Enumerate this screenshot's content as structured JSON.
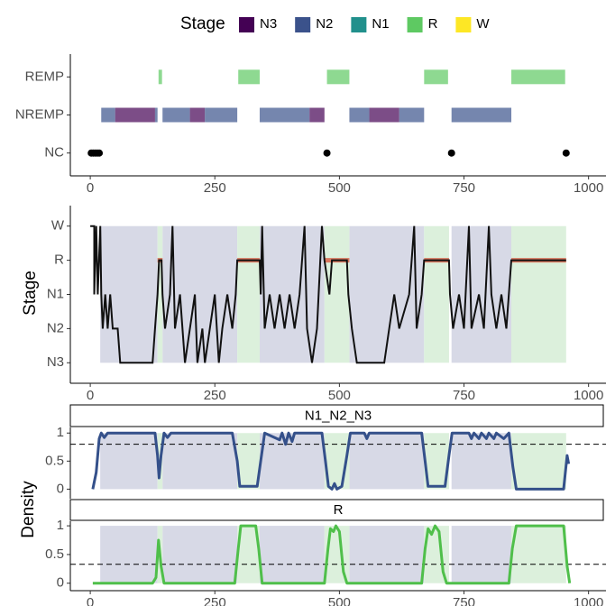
{
  "chart_data": [
    {
      "type": "timeline",
      "legend_title": "Stage",
      "stages": [
        {
          "name": "N3",
          "color": "#440154"
        },
        {
          "name": "N2",
          "color": "#3b528b"
        },
        {
          "name": "N1",
          "color": "#21908c"
        },
        {
          "name": "R",
          "color": "#5ec962"
        },
        {
          "name": "W",
          "color": "#fde725"
        }
      ],
      "categories": [
        "NC",
        "NREMP",
        "REMP"
      ],
      "segments": [
        {
          "row": "REMP",
          "start": 137,
          "end": 144,
          "stage": "R"
        },
        {
          "row": "REMP",
          "start": 297,
          "end": 340,
          "stage": "R"
        },
        {
          "row": "REMP",
          "start": 475,
          "end": 520,
          "stage": "R"
        },
        {
          "row": "REMP",
          "start": 670,
          "end": 718,
          "stage": "R"
        },
        {
          "row": "REMP",
          "start": 845,
          "end": 953,
          "stage": "R"
        },
        {
          "row": "NREMP",
          "start": 22,
          "end": 50,
          "stage": "N2"
        },
        {
          "row": "NREMP",
          "start": 50,
          "end": 130,
          "stage": "N3"
        },
        {
          "row": "NREMP",
          "start": 130,
          "end": 135,
          "stage": "N2"
        },
        {
          "row": "NREMP",
          "start": 145,
          "end": 200,
          "stage": "N2"
        },
        {
          "row": "NREMP",
          "start": 200,
          "end": 230,
          "stage": "N3"
        },
        {
          "row": "NREMP",
          "start": 230,
          "end": 295,
          "stage": "N2"
        },
        {
          "row": "NREMP",
          "start": 340,
          "end": 440,
          "stage": "N2"
        },
        {
          "row": "NREMP",
          "start": 440,
          "end": 470,
          "stage": "N3"
        },
        {
          "row": "NREMP",
          "start": 520,
          "end": 560,
          "stage": "N2"
        },
        {
          "row": "NREMP",
          "start": 560,
          "end": 620,
          "stage": "N3"
        },
        {
          "row": "NREMP",
          "start": 620,
          "end": 670,
          "stage": "N2"
        },
        {
          "row": "NREMP",
          "start": 725,
          "end": 845,
          "stage": "N2"
        }
      ],
      "points": [
        {
          "row": "NC",
          "x": 2
        },
        {
          "row": "NC",
          "x": 6
        },
        {
          "row": "NC",
          "x": 10
        },
        {
          "row": "NC",
          "x": 14
        },
        {
          "row": "NC",
          "x": 18
        },
        {
          "row": "NC",
          "x": 475
        },
        {
          "row": "NC",
          "x": 725
        },
        {
          "row": "NC",
          "x": 955
        }
      ],
      "xlim": [
        -40,
        1035
      ],
      "xticks": [
        0,
        250,
        500,
        750,
        1000
      ]
    },
    {
      "type": "hypnogram",
      "ylabel": "Stage",
      "categories": [
        "N3",
        "N2",
        "N1",
        "R",
        "W"
      ],
      "x": [
        0,
        8,
        8,
        12,
        15,
        20,
        22,
        25,
        30,
        35,
        40,
        45,
        55,
        60,
        125,
        130,
        135,
        138,
        143,
        145,
        150,
        160,
        165,
        170,
        180,
        190,
        200,
        210,
        215,
        225,
        230,
        240,
        250,
        258,
        265,
        275,
        285,
        292,
        295,
        340,
        342,
        345,
        350,
        360,
        370,
        380,
        390,
        400,
        410,
        420,
        430,
        435,
        445,
        455,
        465,
        470,
        480,
        485,
        515,
        518,
        525,
        535,
        590,
        600,
        610,
        620,
        640,
        650,
        655,
        665,
        670,
        720,
        722,
        728,
        740,
        750,
        760,
        765,
        780,
        790,
        800,
        805,
        815,
        825,
        835,
        845,
        955
      ],
      "y": [
        "W",
        "W",
        "N1",
        "W",
        "N1",
        "W",
        "N1",
        "N2",
        "N1",
        "N2",
        "N1",
        "N2",
        "N2",
        "N3",
        "N3",
        "N2",
        "N1",
        "R",
        "R",
        "N1",
        "N2",
        "N1",
        "W",
        "N2",
        "N1",
        "N3",
        "N2",
        "N1",
        "N3",
        "N2",
        "N3",
        "N2",
        "N1",
        "N3",
        "N2",
        "N1",
        "N2",
        "N1",
        "R",
        "R",
        "N1",
        "W",
        "N2",
        "N1",
        "N2",
        "N1",
        "N2",
        "N1",
        "N2",
        "N1",
        "W",
        "N2",
        "N3",
        "N2",
        "W",
        "R",
        "N1",
        "R",
        "R",
        "N1",
        "N2",
        "N3",
        "N3",
        "N2",
        "N1",
        "N2",
        "N1",
        "W",
        "N2",
        "N1",
        "R",
        "R",
        "N1",
        "N2",
        "N1",
        "N2",
        "W",
        "N2",
        "N1",
        "N2",
        "W",
        "N1",
        "N2",
        "N1",
        "N2",
        "R",
        "R"
      ],
      "line_color": "#111111",
      "rem_line_color": "#d9775f",
      "nrem_periods": [
        [
          20,
          135
        ],
        [
          145,
          295
        ],
        [
          340,
          470
        ],
        [
          520,
          670
        ],
        [
          725,
          845
        ]
      ],
      "rem_periods": [
        [
          135,
          145
        ],
        [
          295,
          340
        ],
        [
          470,
          520
        ],
        [
          670,
          720
        ],
        [
          845,
          955
        ]
      ],
      "nrem_color": "#d7d9e6",
      "rem_color": "#dcf0dc",
      "xlim": [
        -40,
        1035
      ],
      "xticks": [
        0,
        250,
        500,
        750,
        1000
      ]
    },
    {
      "type": "density",
      "strip": "N1_N2_N3",
      "ylabel": "Density",
      "color": "#34508a",
      "threshold": 0.8,
      "x": [
        5,
        12,
        18,
        22,
        28,
        35,
        130,
        135,
        138,
        142,
        148,
        155,
        162,
        285,
        295,
        300,
        335,
        342,
        350,
        380,
        385,
        392,
        398,
        405,
        410,
        465,
        472,
        478,
        485,
        490,
        495,
        505,
        515,
        522,
        550,
        555,
        560,
        665,
        672,
        678,
        712,
        720,
        726,
        760,
        765,
        770,
        780,
        785,
        795,
        800,
        810,
        815,
        830,
        840,
        848,
        855,
        950,
        957,
        960
      ],
      "values": [
        0,
        0.3,
        0.9,
        1,
        0.92,
        1,
        1,
        0.6,
        0.2,
        0.6,
        1,
        0.92,
        1,
        1,
        0.5,
        0.05,
        0.05,
        0.5,
        1,
        0.88,
        1,
        0.8,
        1,
        0.85,
        1,
        1,
        0.5,
        0.05,
        0,
        0.1,
        0,
        0.05,
        0.6,
        1,
        1,
        0.9,
        1,
        1,
        0.5,
        0.05,
        0.05,
        0.6,
        1,
        1,
        0.9,
        1,
        0.9,
        1,
        0.9,
        1,
        0.9,
        1,
        0.9,
        1,
        0.4,
        0,
        0,
        0.6,
        0.45
      ],
      "xlim": [
        -40,
        1035
      ],
      "ylim": [
        -0.17,
        1.1
      ],
      "yticks": [
        0,
        0.5,
        1
      ]
    },
    {
      "type": "density",
      "strip": "R",
      "color": "#4fbf4a",
      "threshold": 0.33,
      "x": [
        5,
        125,
        132,
        137,
        142,
        148,
        290,
        297,
        302,
        332,
        338,
        345,
        470,
        477,
        482,
        488,
        493,
        500,
        508,
        515,
        665,
        672,
        678,
        685,
        692,
        700,
        708,
        715,
        840,
        847,
        855,
        950,
        957,
        962
      ],
      "values": [
        0,
        0,
        0.1,
        0.75,
        0.3,
        0,
        0,
        0.6,
        1,
        1,
        0.6,
        0,
        0,
        0.6,
        0.95,
        0.9,
        1,
        0.9,
        0.2,
        0,
        0,
        0.6,
        0.95,
        0.85,
        1,
        0.9,
        0.2,
        0,
        0,
        0.6,
        1,
        1,
        0.3,
        0
      ],
      "xlim": [
        -40,
        1035
      ],
      "ylim": [
        -0.13,
        1.08
      ],
      "yticks": [
        0,
        0.5,
        1
      ],
      "xticks": [
        0,
        250,
        500,
        750,
        1000
      ]
    }
  ]
}
